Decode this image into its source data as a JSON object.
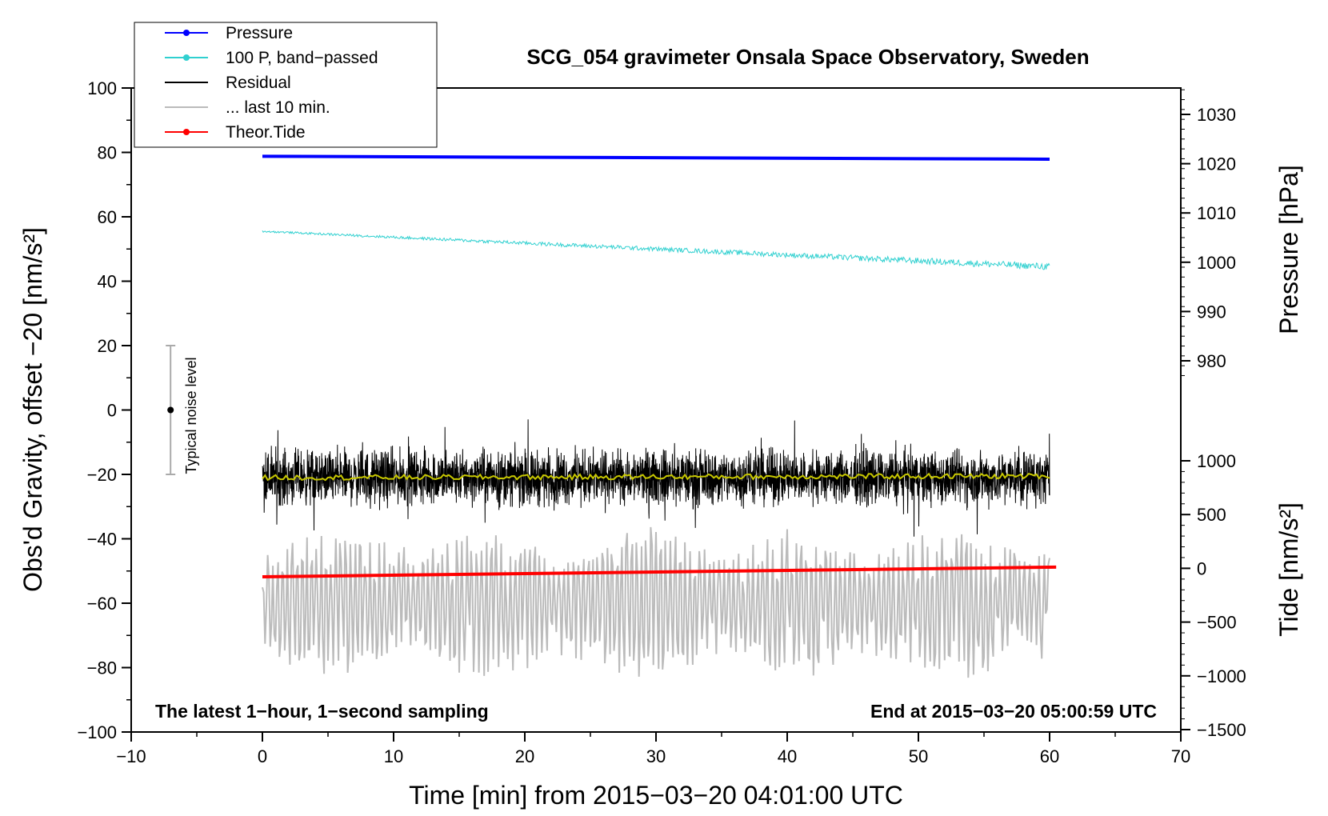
{
  "chart_data": {
    "type": "line",
    "title": "SCG_054 gravimeter Onsala Space Observatory, Sweden",
    "xlabel": "Time [min] from 2015−03−20 04:01:00 UTC",
    "ylabel_left": "Obs'd Gravity, offset −20 [nm/s²]",
    "ylabel_right_pressure": "Pressure [hPa]",
    "ylabel_right_tide": "Tide [nm/s²]",
    "xlim": [
      -10,
      70
    ],
    "ylim_left": [
      -100,
      100
    ],
    "x_ticks": [
      -10,
      0,
      10,
      20,
      30,
      40,
      50,
      60,
      70
    ],
    "x_tick_labels": [
      "−10",
      "0",
      "10",
      "20",
      "30",
      "40",
      "50",
      "60",
      "70"
    ],
    "y_left_ticks": [
      100,
      80,
      60,
      40,
      20,
      0,
      -20,
      -40,
      -60,
      -80,
      -100
    ],
    "y_left_tick_labels": [
      "100",
      "80",
      "60",
      "40",
      "20",
      "0",
      "−20",
      "−40",
      "−60",
      "−80",
      "−100"
    ],
    "pressure_axis": {
      "ticks": [
        1030,
        1020,
        1010,
        1000,
        990,
        980
      ],
      "tick_labels": [
        "1030",
        "1020",
        "1010",
        "1000",
        "990",
        "980"
      ]
    },
    "tide_axis": {
      "ticks": [
        1000,
        500,
        0,
        -500,
        -1000,
        -1500
      ],
      "tick_labels": [
        "1000",
        "500",
        "0",
        "−500",
        "−1000",
        "−1500"
      ]
    },
    "legend": [
      {
        "label": "Pressure",
        "color": "#0000ff",
        "marker": true
      },
      {
        "label": "100 P, band−passed",
        "color": "#30d0d0",
        "marker": true
      },
      {
        "label": "Residual",
        "color": "#000000",
        "marker": false
      },
      {
        "label": "... last 10 min.",
        "color": "#bbbbbb",
        "marker": false
      },
      {
        "label": "Theor.Tide",
        "color": "#ff0000",
        "marker": true
      }
    ],
    "series": [
      {
        "name": "Pressure",
        "color": "#0000ff",
        "x": [
          0,
          60
        ],
        "y": [
          78.8,
          77.9
        ]
      },
      {
        "name": "100 P, band−passed",
        "color": "#30d0d0",
        "x": [
          0,
          60
        ],
        "y": [
          55.5,
          44.5
        ],
        "noise_amplitude": 1.5
      },
      {
        "name": "Residual",
        "color": "#000000",
        "x": [
          0,
          60
        ],
        "y_center": -21,
        "noise_amplitude": 12
      },
      {
        "name": "Residual smoothed",
        "color": "#c8c800",
        "x": [
          0,
          60
        ],
        "y": [
          -21,
          -20.5
        ]
      },
      {
        "name": "... last 10 min.",
        "color": "#bbbbbb",
        "x": [
          0,
          60
        ],
        "y_center": -60,
        "noise_amplitude": 16
      },
      {
        "name": "Theor.Tide",
        "color": "#ff0000",
        "x": [
          0,
          60.5
        ],
        "y": [
          -51.8,
          -48.8
        ]
      }
    ],
    "noise_bar": {
      "label": "Typical noise level",
      "x": -7,
      "y_center": 0,
      "y_range": [
        -20,
        20
      ]
    },
    "footer_left": "The latest 1−hour, 1−second sampling",
    "footer_right": "End at 2015−03−20 05:00:59 UTC"
  }
}
